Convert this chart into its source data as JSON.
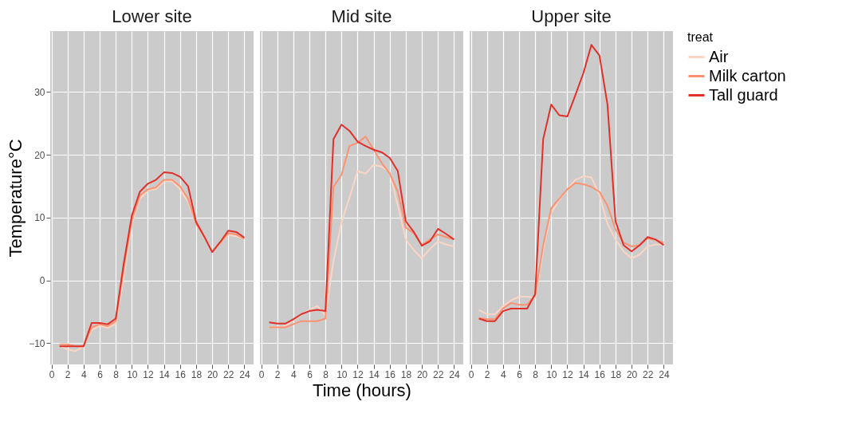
{
  "chart_data": [
    {
      "type": "line",
      "title": "Lower site",
      "ylabel": "Temperature°C",
      "x": [
        1,
        2,
        3,
        4,
        5,
        6,
        7,
        8,
        9,
        10,
        11,
        12,
        13,
        14,
        15,
        16,
        17,
        18,
        19,
        20,
        21,
        22,
        23,
        24
      ],
      "xlim": [
        -0.15,
        25.15
      ],
      "xticks": [
        0,
        2,
        4,
        6,
        8,
        10,
        12,
        14,
        16,
        18,
        20,
        22,
        24
      ],
      "ylim": [
        -13.4,
        39.7
      ],
      "yticks": [
        -10,
        0,
        10,
        20,
        30
      ],
      "grid": true,
      "line_style": "solid",
      "tick_labels": true,
      "series": [
        {
          "color": "#fdd5c4",
          "values": [
            -10.5,
            -11,
            -11.3,
            -10.5,
            -8,
            -7.2,
            -7.6,
            -7,
            0.5,
            9,
            13,
            14.3,
            14.5,
            15.8,
            15.8,
            14.5,
            12.5,
            9,
            7,
            4.5,
            6,
            7.3,
            7,
            6.6
          ]
        },
        {
          "color": "#fb9272",
          "values": [
            -10.2,
            -10.2,
            -10.5,
            -10.5,
            -7.5,
            -7,
            -7.3,
            -6.5,
            2,
            9.5,
            13.5,
            14.5,
            14.8,
            16,
            16,
            15,
            13,
            9,
            7,
            4.5,
            6,
            7.5,
            7.3,
            6.6
          ]
        },
        {
          "color": "#e0302a",
          "values": [
            -10.5,
            -10.5,
            -10.5,
            -10.5,
            -6.8,
            -6.8,
            -7,
            -6.1,
            2.7,
            10.3,
            14.1,
            15.4,
            16,
            17.2,
            17.1,
            16.5,
            15,
            9.3,
            7,
            4.5,
            6.1,
            7.9,
            7.7,
            6.8
          ]
        }
      ]
    },
    {
      "type": "line",
      "title": "Mid site",
      "xlabel": "Time (hours)",
      "x": [
        1,
        2,
        3,
        4,
        5,
        6,
        7,
        8,
        9,
        10,
        11,
        12,
        13,
        14,
        15,
        16,
        17,
        18,
        19,
        20,
        21,
        22,
        23,
        24
      ],
      "xlim": [
        -0.15,
        25.15
      ],
      "xticks": [
        0,
        2,
        4,
        6,
        8,
        10,
        12,
        14,
        16,
        18,
        20,
        22,
        24
      ],
      "ylim": [
        -13.4,
        39.7
      ],
      "yticks": [
        -10,
        0,
        10,
        20,
        30
      ],
      "grid": true,
      "line_style": "solid",
      "tick_labels": "x",
      "series": [
        {
          "color": "#fdd5c4",
          "values": [
            -7.5,
            -7.5,
            -7.3,
            -6.4,
            -5.5,
            -4.7,
            -4.1,
            -5.6,
            3.1,
            9.2,
            13.2,
            17.4,
            17,
            18.4,
            18.1,
            17.2,
            11.9,
            6.5,
            4.8,
            3.5,
            5,
            6.2,
            5.7,
            5.4
          ]
        },
        {
          "color": "#fb9272",
          "values": [
            -7.5,
            -7.5,
            -7.5,
            -7,
            -6.5,
            -6.5,
            -6.5,
            -6.1,
            14.9,
            16.8,
            21.4,
            21.9,
            22.9,
            20.8,
            18.7,
            17,
            14.1,
            8.4,
            7.5,
            5.6,
            6.5,
            7.3,
            6.9,
            6.5
          ]
        },
        {
          "color": "#e0302a",
          "values": [
            -6.7,
            -6.9,
            -6.9,
            -6.2,
            -5.4,
            -4.9,
            -4.7,
            -4.9,
            22.5,
            24.8,
            23.8,
            22.1,
            21.4,
            20.8,
            20.4,
            19.5,
            17.4,
            9.4,
            7.7,
            5.5,
            6.2,
            8.2,
            7.4,
            6.5
          ]
        }
      ]
    },
    {
      "type": "line",
      "title": "Upper site",
      "legend_title": "treat",
      "legend": "right",
      "x": [
        1,
        2,
        3,
        4,
        5,
        6,
        7,
        8,
        9,
        10,
        11,
        12,
        13,
        14,
        15,
        16,
        17,
        18,
        19,
        20,
        21,
        22,
        23,
        24
      ],
      "xlim": [
        -0.15,
        25.15
      ],
      "xticks": [
        0,
        2,
        4,
        6,
        8,
        10,
        12,
        14,
        16,
        18,
        20,
        22,
        24
      ],
      "ylim": [
        -13.4,
        39.7
      ],
      "yticks": [
        -10,
        0,
        10,
        20,
        30
      ],
      "grid": true,
      "line_style": "solid",
      "tick_labels": "x",
      "series": [
        {
          "name": "Air",
          "color": "#fdd5c4",
          "values": [
            -4.7,
            -5.4,
            -5.4,
            -4.1,
            -3.2,
            -2.6,
            -2.6,
            -2.8,
            4.8,
            10.7,
            12.8,
            14.5,
            16,
            16.6,
            16.4,
            13.6,
            9,
            6.5,
            4.6,
            3.5,
            4.1,
            5.4,
            5.7,
            5.7
          ]
        },
        {
          "name": "Milk carton",
          "color": "#fb9272",
          "values": [
            -6,
            -6.2,
            -6.2,
            -4.5,
            -3.6,
            -3.9,
            -3.9,
            -2.4,
            5.6,
            11.5,
            13,
            14.5,
            15.5,
            15.3,
            14.9,
            14.1,
            11.9,
            8.1,
            6,
            5.4,
            5.6,
            6.7,
            6.4,
            6
          ]
        },
        {
          "name": "Tall guard",
          "color": "#e0302a",
          "values": [
            -6.1,
            -6.5,
            -6.5,
            -4.9,
            -4.5,
            -4.5,
            -4.5,
            -2.2,
            22.5,
            28,
            26.3,
            26.1,
            29.5,
            33,
            37.5,
            35.8,
            28,
            9.4,
            5.6,
            4.6,
            5.6,
            6.9,
            6.5,
            5.6
          ]
        }
      ]
    }
  ]
}
